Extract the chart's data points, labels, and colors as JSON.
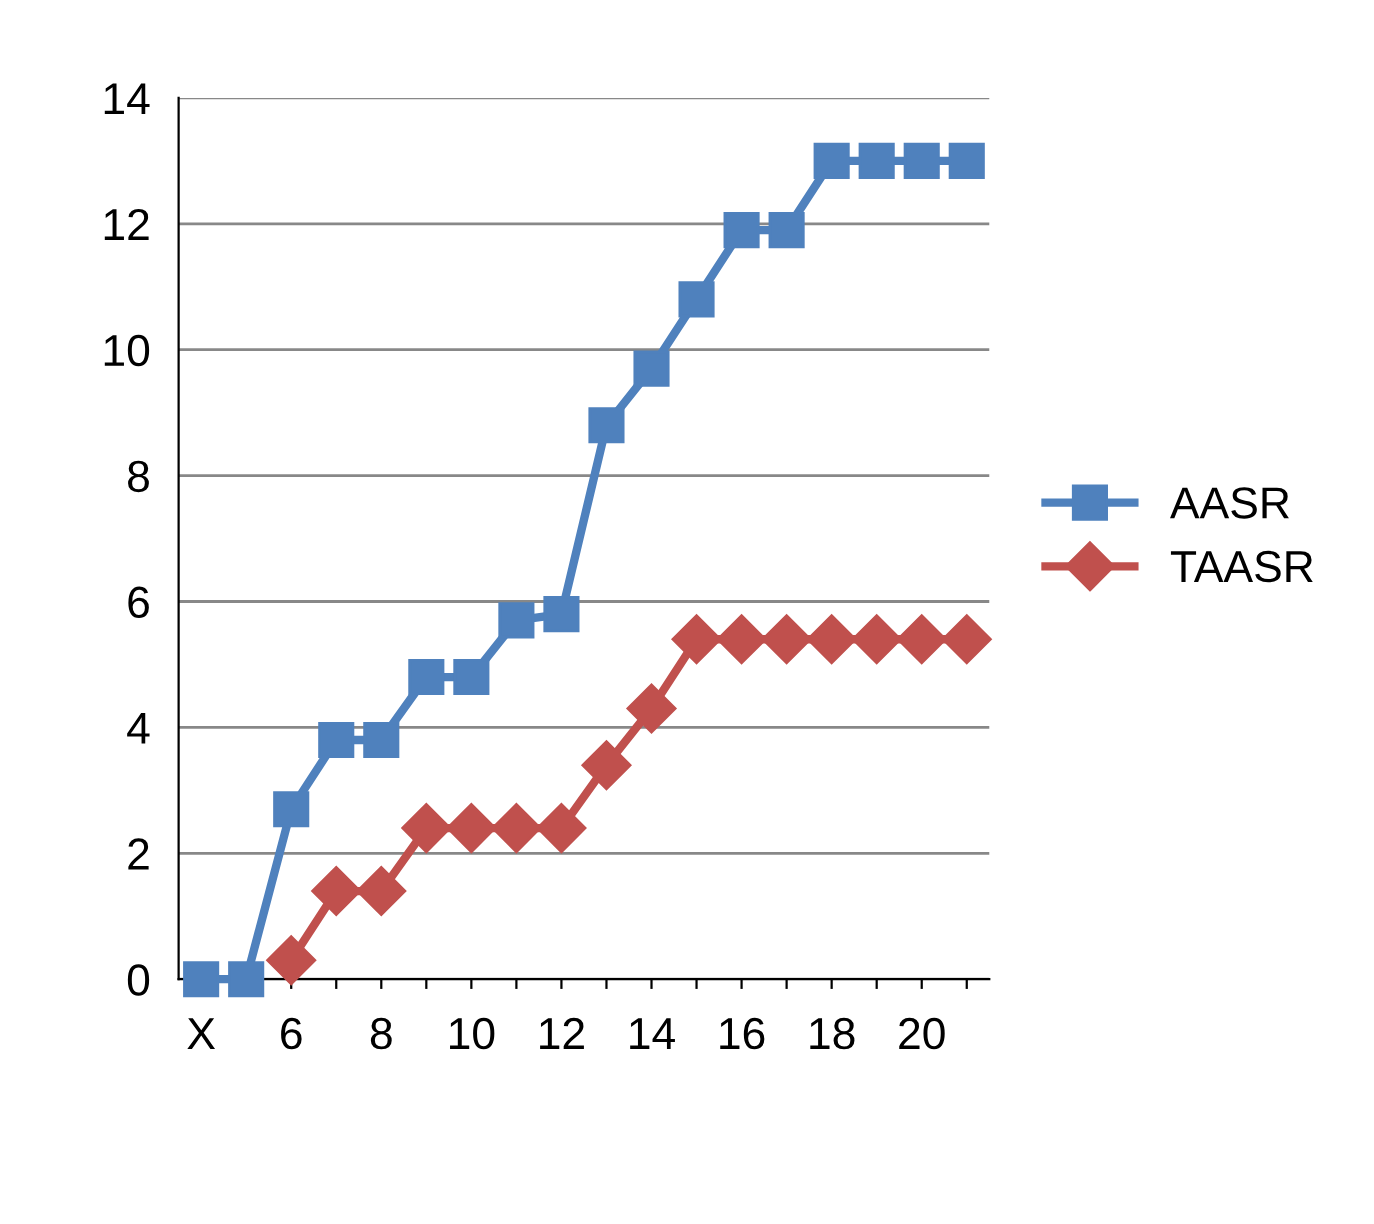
{
  "chart_data": {
    "type": "line",
    "categories": [
      "X",
      null,
      "6",
      null,
      "8",
      null,
      "10",
      null,
      "12",
      null,
      "14",
      null,
      "16",
      null,
      "18",
      null,
      "20",
      null
    ],
    "series": [
      {
        "name": "AASR",
        "color": "#4f81bd",
        "marker": "square",
        "values": [
          0,
          0,
          2.7,
          3.8,
          3.8,
          4.8,
          4.8,
          5.7,
          5.8,
          8.8,
          9.7,
          10.8,
          11.9,
          11.9,
          13,
          13,
          13,
          13
        ]
      },
      {
        "name": "TAASR",
        "color": "#c0504d",
        "marker": "diamond",
        "values": [
          null,
          null,
          0.3,
          1.4,
          1.4,
          2.4,
          2.4,
          2.4,
          2.4,
          3.4,
          4.3,
          5.4,
          5.4,
          5.4,
          5.4,
          5.4,
          5.4,
          5.4
        ]
      }
    ],
    "ylim": [
      0,
      14
    ],
    "yticks": [
      0,
      2,
      4,
      6,
      8,
      10,
      12,
      14
    ],
    "grid": "y",
    "legend": "right",
    "line_style": "solid"
  }
}
